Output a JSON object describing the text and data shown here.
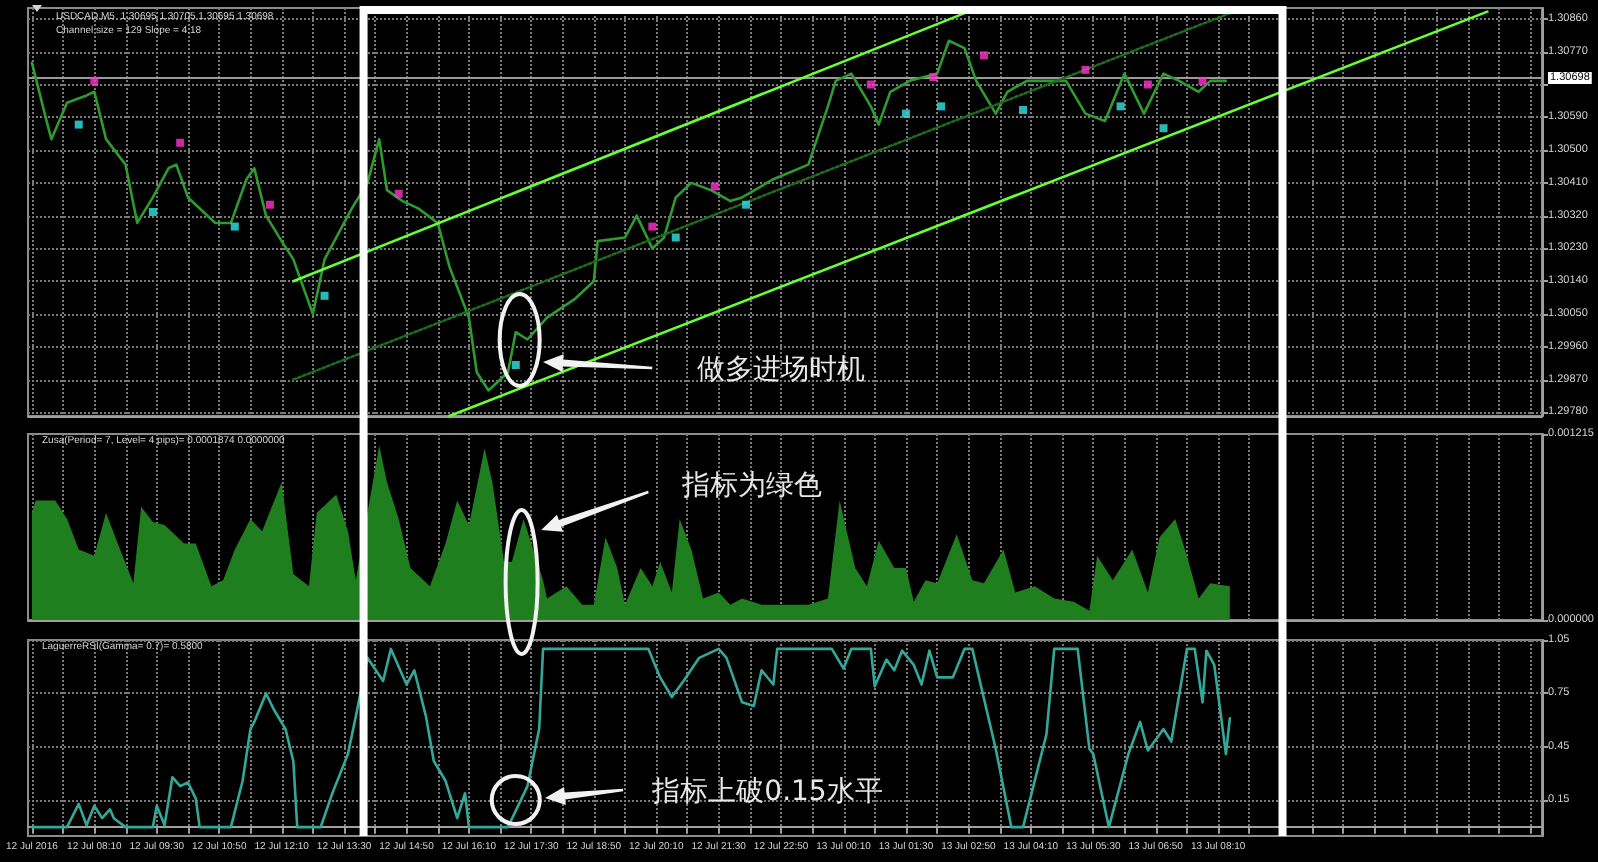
{
  "chart_data": [
    {
      "type": "line",
      "title": "USDCAD,M5  1.30695 1.30705 1.30695 1.30698",
      "subtitle": "Channel size = 129 Slope = 4.18",
      "xlim": [
        "2016-07-12T06:45",
        "2016-07-13T15:05"
      ],
      "xticks": [
        {
          "value": "2016-07-12T06:50",
          "label": null
        },
        {
          "value": "2016-07-12T07:30",
          "label": null
        },
        {
          "value": "2016-07-12T08:10",
          "label": null
        },
        {
          "value": "2016-07-12T08:50",
          "label": null
        },
        {
          "value": "2016-07-12T09:30",
          "label": null
        },
        {
          "value": "2016-07-12T10:10",
          "label": null
        },
        {
          "value": "2016-07-12T10:50",
          "label": null
        },
        {
          "value": "2016-07-12T11:30",
          "label": null
        },
        {
          "value": "2016-07-12T12:10",
          "label": null
        },
        {
          "value": "2016-07-12T12:50",
          "label": null
        },
        {
          "value": "2016-07-12T13:30",
          "label": null
        },
        {
          "value": "2016-07-12T14:10",
          "label": null
        },
        {
          "value": "2016-07-12T14:50",
          "label": null
        },
        {
          "value": "2016-07-12T15:30",
          "label": null
        },
        {
          "value": "2016-07-12T16:10",
          "label": null
        },
        {
          "value": "2016-07-12T16:50",
          "label": null
        },
        {
          "value": "2016-07-12T17:30",
          "label": null
        },
        {
          "value": "2016-07-12T18:10",
          "label": null
        },
        {
          "value": "2016-07-12T18:50",
          "label": null
        },
        {
          "value": "2016-07-12T19:30",
          "label": null
        },
        {
          "value": "2016-07-12T20:10",
          "label": null
        },
        {
          "value": "2016-07-12T20:50",
          "label": null
        },
        {
          "value": "2016-07-12T21:30",
          "label": null
        },
        {
          "value": "2016-07-12T22:10",
          "label": null
        },
        {
          "value": "2016-07-12T22:50",
          "label": null
        },
        {
          "value": "2016-07-12T23:30",
          "label": null
        },
        {
          "value": "2016-07-13T00:10",
          "label": null
        },
        {
          "value": "2016-07-13T00:50",
          "label": null
        },
        {
          "value": "2016-07-13T01:30",
          "label": null
        },
        {
          "value": "2016-07-13T02:10",
          "label": null
        },
        {
          "value": "2016-07-13T02:50",
          "label": null
        },
        {
          "value": "2016-07-13T03:30",
          "label": null
        },
        {
          "value": "2016-07-13T04:10",
          "label": null
        },
        {
          "value": "2016-07-13T04:50",
          "label": null
        },
        {
          "value": "2016-07-13T05:30",
          "label": null
        },
        {
          "value": "2016-07-13T06:10",
          "label": null
        },
        {
          "value": "2016-07-13T06:50",
          "label": null
        },
        {
          "value": "2016-07-13T07:30",
          "label": null
        },
        {
          "value": "2016-07-13T08:10",
          "label": null
        },
        {
          "value": "2016-07-13T08:50",
          "label": null
        },
        {
          "value": "2016-07-13T09:30",
          "label": null
        },
        {
          "value": "2016-07-13T10:10",
          "label": null
        },
        {
          "value": "2016-07-13T10:50",
          "label": null
        },
        {
          "value": "2016-07-13T11:30",
          "label": null
        },
        {
          "value": "2016-07-13T12:10",
          "label": null
        },
        {
          "value": "2016-07-13T12:50",
          "label": null
        },
        {
          "value": "2016-07-13T13:30",
          "label": null
        },
        {
          "value": "2016-07-13T14:10",
          "label": null
        },
        {
          "value": "2016-07-13T14:50",
          "label": null
        }
      ],
      "ylim": [
        1.2977,
        1.3089
      ],
      "yticks": [
        {
          "value": 1.2978,
          "label": "1.29780"
        },
        {
          "value": 1.2987,
          "label": "1.29870"
        },
        {
          "value": 1.2996,
          "label": "1.29960"
        },
        {
          "value": 1.3005,
          "label": "1.30050"
        },
        {
          "value": 1.3014,
          "label": "1.30140"
        },
        {
          "value": 1.3023,
          "label": "1.30230"
        },
        {
          "value": 1.3032,
          "label": "1.30320"
        },
        {
          "value": 1.3041,
          "label": "1.30410"
        },
        {
          "value": 1.305,
          "label": "1.30500"
        },
        {
          "value": 1.3059,
          "label": "1.30590"
        },
        {
          "value": 1.3068,
          "label": null
        },
        {
          "value": 1.3077,
          "label": "1.30770"
        },
        {
          "value": 1.3086,
          "label": "1.30860"
        }
      ],
      "tick_labels": "y",
      "grid": true,
      "series": [
        {
          "color": "#2f9a2f",
          "x": [
            "2016-07-12T06:50",
            "2016-07-12T07:10",
            "2016-07-12T07:15",
            "2016-07-12T07:35",
            "2016-07-12T08:00",
            "2016-07-12T08:10",
            "2016-07-12T08:25",
            "2016-07-12T08:50",
            "2016-07-12T09:05",
            "2016-07-12T09:25",
            "2016-07-12T09:45",
            "2016-07-12T09:55",
            "2016-07-12T10:10",
            "2016-07-12T10:45",
            "2016-07-12T11:05",
            "2016-07-12T11:25",
            "2016-07-12T11:35",
            "2016-07-12T11:50",
            "2016-07-12T12:10",
            "2016-07-12T12:25",
            "2016-07-12T12:50",
            "2016-07-12T13:05",
            "2016-07-12T13:30",
            "2016-07-12T13:40",
            "2016-07-12T14:00",
            "2016-07-12T14:15",
            "2016-07-12T14:25",
            "2016-07-12T14:45",
            "2016-07-12T15:05",
            "2016-07-12T15:30",
            "2016-07-12T15:45",
            "2016-07-12T16:10",
            "2016-07-12T16:20",
            "2016-07-12T16:35",
            "2016-07-12T17:00",
            "2016-07-12T17:10",
            "2016-07-12T17:25",
            "2016-07-12T17:50",
            "2016-07-12T18:25",
            "2016-07-12T18:50",
            "2016-07-12T18:55",
            "2016-07-12T19:30",
            "2016-07-12T19:45",
            "2016-07-12T20:05",
            "2016-07-12T20:20",
            "2016-07-12T20:35",
            "2016-07-12T20:55",
            "2016-07-12T21:20",
            "2016-07-12T21:45",
            "2016-07-12T22:00",
            "2016-07-12T22:40",
            "2016-07-12T23:25",
            "2016-07-12T23:50",
            "2016-07-13T00:00",
            "2016-07-13T00:20",
            "2016-07-13T00:45",
            "2016-07-13T00:55",
            "2016-07-13T01:10",
            "2016-07-13T01:35",
            "2016-07-13T02:10",
            "2016-07-13T02:25",
            "2016-07-13T02:45",
            "2016-07-13T03:00",
            "2016-07-13T03:25",
            "2016-07-13T03:40",
            "2016-07-13T04:05",
            "2016-07-13T04:30",
            "2016-07-13T04:55",
            "2016-07-13T05:20",
            "2016-07-13T05:45",
            "2016-07-13T06:10",
            "2016-07-13T06:35",
            "2016-07-13T07:00",
            "2016-07-13T07:20",
            "2016-07-13T07:45",
            "2016-07-13T08:00",
            "2016-07-13T08:20"
          ],
          "values": [
            1.3074,
            1.3057,
            1.3053,
            1.3063,
            1.3065,
            1.3066,
            1.3053,
            1.3046,
            1.303,
            1.3037,
            1.3045,
            1.3046,
            1.3037,
            1.303,
            1.303,
            1.3042,
            1.3045,
            1.3032,
            1.3025,
            1.302,
            1.3005,
            1.302,
            1.303,
            1.3034,
            1.3041,
            1.3053,
            1.3039,
            1.3036,
            1.3034,
            1.303,
            1.3018,
            1.3004,
            1.2989,
            1.2984,
            1.2989,
            1.3,
            1.2998,
            1.3004,
            1.3009,
            1.3014,
            1.3025,
            1.3026,
            1.3032,
            1.3023,
            1.3026,
            1.3037,
            1.3041,
            1.3039,
            1.3036,
            1.3037,
            1.3042,
            1.3046,
            1.3062,
            1.3069,
            1.3071,
            1.3062,
            1.3057,
            1.3066,
            1.3069,
            1.3071,
            1.308,
            1.3078,
            1.3069,
            1.306,
            1.3066,
            1.3069,
            1.3069,
            1.3069,
            1.306,
            1.3058,
            1.3071,
            1.306,
            1.3071,
            1.3069,
            1.3066,
            1.3069,
            1.3069
          ]
        },
        {
          "type": "line",
          "color": "#66ff33",
          "x": [
            "2016-07-12T12:25",
            "2016-07-13T02:50"
          ],
          "values": [
            1.3014,
            1.3088
          ]
        },
        {
          "type": "line",
          "color": "#1f6b1f",
          "line_style": "dotted",
          "x": [
            "2016-07-12T12:25",
            "2016-07-13T08:30"
          ],
          "values": [
            1.2987,
            1.3088
          ]
        },
        {
          "type": "line",
          "color": "#66ff33",
          "x": [
            "2016-07-12T15:45",
            "2016-07-13T13:55"
          ],
          "values": [
            1.2977,
            1.3088
          ]
        },
        {
          "type": "scatter",
          "marker": "square",
          "color": "#ff33cc",
          "x": [
            "2016-07-12T08:10",
            "2016-07-12T10:00",
            "2016-07-12T11:55",
            "2016-07-12T14:40",
            "2016-07-12T20:05",
            "2016-07-12T21:25",
            "2016-07-13T00:45",
            "2016-07-13T02:05",
            "2016-07-13T03:10",
            "2016-07-13T05:20",
            "2016-07-13T06:40",
            "2016-07-13T07:50"
          ],
          "values": [
            1.3069,
            1.3052,
            1.3035,
            1.3038,
            1.3029,
            1.304,
            1.3068,
            1.307,
            1.3076,
            1.3072,
            1.3068,
            1.3069
          ]
        },
        {
          "type": "scatter",
          "marker": "square",
          "color": "#33e6e6",
          "x": [
            "2016-07-12T07:50",
            "2016-07-12T09:25",
            "2016-07-12T11:10",
            "2016-07-12T13:05",
            "2016-07-12T17:10",
            "2016-07-12T20:35",
            "2016-07-12T22:05",
            "2016-07-13T01:30",
            "2016-07-13T02:15",
            "2016-07-13T04:00",
            "2016-07-13T06:05",
            "2016-07-13T07:00"
          ],
          "values": [
            1.3057,
            1.3033,
            1.3029,
            1.301,
            1.2991,
            1.3026,
            1.3035,
            1.306,
            1.3062,
            1.3061,
            1.3062,
            1.3056
          ]
        }
      ],
      "ref_lines": [
        {
          "axis": "y",
          "value": 1.30698,
          "label": "1.30698",
          "color": "#9a9a9a"
        }
      ],
      "annotations": [
        "做多进场时机"
      ]
    },
    {
      "type": "area",
      "title": "Zusa(Period= 7, Level= 4 pips)= 0.0001874 0.0000000",
      "color": "#1f7f1f",
      "xlim": [
        "2016-07-12T06:45",
        "2016-07-13T15:05"
      ],
      "xticks": [
        {
          "value": "2016-07-12T06:50",
          "label": null
        },
        {
          "value": "2016-07-12T07:30",
          "label": null
        },
        {
          "value": "2016-07-12T08:10",
          "label": null
        },
        {
          "value": "2016-07-12T08:50",
          "label": null
        },
        {
          "value": "2016-07-12T09:30",
          "label": null
        },
        {
          "value": "2016-07-12T10:10",
          "label": null
        },
        {
          "value": "2016-07-12T10:50",
          "label": null
        },
        {
          "value": "2016-07-12T11:30",
          "label": null
        },
        {
          "value": "2016-07-12T12:10",
          "label": null
        },
        {
          "value": "2016-07-12T12:50",
          "label": null
        },
        {
          "value": "2016-07-12T13:30",
          "label": null
        },
        {
          "value": "2016-07-12T14:10",
          "label": null
        },
        {
          "value": "2016-07-12T14:50",
          "label": null
        },
        {
          "value": "2016-07-12T15:30",
          "label": null
        },
        {
          "value": "2016-07-12T16:10",
          "label": null
        },
        {
          "value": "2016-07-12T16:50",
          "label": null
        },
        {
          "value": "2016-07-12T17:30",
          "label": null
        },
        {
          "value": "2016-07-12T18:10",
          "label": null
        },
        {
          "value": "2016-07-12T18:50",
          "label": null
        },
        {
          "value": "2016-07-12T19:30",
          "label": null
        },
        {
          "value": "2016-07-12T20:10",
          "label": null
        },
        {
          "value": "2016-07-12T20:50",
          "label": null
        },
        {
          "value": "2016-07-12T21:30",
          "label": null
        },
        {
          "value": "2016-07-12T22:10",
          "label": null
        },
        {
          "value": "2016-07-12T22:50",
          "label": null
        },
        {
          "value": "2016-07-12T23:30",
          "label": null
        },
        {
          "value": "2016-07-13T00:10",
          "label": null
        },
        {
          "value": "2016-07-13T00:50",
          "label": null
        },
        {
          "value": "2016-07-13T01:30",
          "label": null
        },
        {
          "value": "2016-07-13T02:10",
          "label": null
        },
        {
          "value": "2016-07-13T02:50",
          "label": null
        },
        {
          "value": "2016-07-13T03:30",
          "label": null
        },
        {
          "value": "2016-07-13T04:10",
          "label": null
        },
        {
          "value": "2016-07-13T04:50",
          "label": null
        },
        {
          "value": "2016-07-13T05:30",
          "label": null
        },
        {
          "value": "2016-07-13T06:10",
          "label": null
        },
        {
          "value": "2016-07-13T06:50",
          "label": null
        },
        {
          "value": "2016-07-13T07:30",
          "label": null
        },
        {
          "value": "2016-07-13T08:10",
          "label": null
        },
        {
          "value": "2016-07-13T08:50",
          "label": null
        },
        {
          "value": "2016-07-13T09:30",
          "label": null
        },
        {
          "value": "2016-07-13T10:10",
          "label": null
        },
        {
          "value": "2016-07-13T10:50",
          "label": null
        },
        {
          "value": "2016-07-13T11:30",
          "label": null
        },
        {
          "value": "2016-07-13T12:10",
          "label": null
        },
        {
          "value": "2016-07-13T12:50",
          "label": null
        },
        {
          "value": "2016-07-13T13:30",
          "label": null
        },
        {
          "value": "2016-07-13T14:10",
          "label": null
        },
        {
          "value": "2016-07-13T14:50",
          "label": null
        }
      ],
      "ylim": [
        0,
        0.001215
      ],
      "yticks": [
        {
          "value": 0,
          "label": "0.000000"
        },
        {
          "value": 0.001215,
          "label": "0.001215"
        }
      ],
      "tick_labels": "y",
      "grid": "x",
      "x": [
        "2016-07-12T06:50",
        "2016-07-12T06:55",
        "2016-07-12T07:20",
        "2016-07-12T07:35",
        "2016-07-12T07:50",
        "2016-07-12T08:10",
        "2016-07-12T08:25",
        "2016-07-12T08:40",
        "2016-07-12T09:00",
        "2016-07-12T09:10",
        "2016-07-12T09:25",
        "2016-07-12T09:40",
        "2016-07-12T10:05",
        "2016-07-12T10:20",
        "2016-07-12T10:40",
        "2016-07-12T10:55",
        "2016-07-12T11:10",
        "2016-07-12T11:30",
        "2016-07-12T11:45",
        "2016-07-12T12:10",
        "2016-07-12T12:25",
        "2016-07-12T12:45",
        "2016-07-12T12:55",
        "2016-07-12T13:20",
        "2016-07-12T13:35",
        "2016-07-12T13:45",
        "2016-07-12T14:15",
        "2016-07-12T14:25",
        "2016-07-12T14:40",
        "2016-07-12T14:55",
        "2016-07-12T15:20",
        "2016-07-12T15:40",
        "2016-07-12T15:55",
        "2016-07-12T16:10",
        "2016-07-12T16:30",
        "2016-07-12T16:40",
        "2016-07-12T16:55",
        "2016-07-12T17:05",
        "2016-07-12T17:20",
        "2016-07-12T17:30",
        "2016-07-12T17:45",
        "2016-07-12T17:50",
        "2016-07-12T18:15",
        "2016-07-12T18:35",
        "2016-07-12T18:50",
        "2016-07-12T19:05",
        "2016-07-12T19:20",
        "2016-07-12T19:30",
        "2016-07-12T19:50",
        "2016-07-12T20:05",
        "2016-07-12T20:15",
        "2016-07-12T20:30",
        "2016-07-12T20:40",
        "2016-07-12T20:55",
        "2016-07-12T21:10",
        "2016-07-12T21:30",
        "2016-07-12T21:45",
        "2016-07-12T22:00",
        "2016-07-12T22:25",
        "2016-07-12T22:50",
        "2016-07-12T23:25",
        "2016-07-12T23:50",
        "2016-07-13T00:05",
        "2016-07-13T00:25",
        "2016-07-13T00:40",
        "2016-07-13T00:55",
        "2016-07-13T01:15",
        "2016-07-13T01:30",
        "2016-07-13T01:40",
        "2016-07-13T01:55",
        "2016-07-13T02:10",
        "2016-07-13T02:35",
        "2016-07-13T02:55",
        "2016-07-13T03:10",
        "2016-07-13T03:35",
        "2016-07-13T03:50",
        "2016-07-13T04:15",
        "2016-07-13T04:40",
        "2016-07-13T05:05",
        "2016-07-13T05:25",
        "2016-07-13T05:35",
        "2016-07-13T05:55",
        "2016-07-13T06:20",
        "2016-07-13T06:40",
        "2016-07-13T06:55",
        "2016-07-13T07:15",
        "2016-07-13T07:30",
        "2016-07-13T07:45",
        "2016-07-13T08:00",
        "2016-07-13T08:25"
      ],
      "values": [
        0.0007,
        0.00078,
        0.00078,
        0.00066,
        0.00046,
        0.00042,
        0.0007,
        0.0005,
        0.00024,
        0.00074,
        0.00064,
        0.00062,
        0.0005,
        0.0005,
        0.00022,
        0.00026,
        0.00046,
        0.00066,
        0.00058,
        0.0009,
        0.0003,
        0.00022,
        0.0007,
        0.00082,
        0.00058,
        0.00026,
        0.00114,
        0.0009,
        0.00066,
        0.00034,
        0.00022,
        0.0005,
        0.00078,
        0.00062,
        0.00112,
        0.0009,
        0.00038,
        0.00038,
        0.00066,
        0.0005,
        0.00026,
        0.00014,
        0.00022,
        0.0001,
        0.0001,
        0.00054,
        0.00034,
        0.0001,
        0.00034,
        0.00022,
        0.00038,
        0.00018,
        0.00066,
        0.00046,
        0.00014,
        0.00018,
        0.0001,
        0.00014,
        0.0001,
        0.0001,
        0.0001,
        0.00014,
        0.00078,
        0.00034,
        0.00022,
        0.00052,
        0.00034,
        0.00034,
        0.00012,
        0.00026,
        0.00024,
        0.00056,
        0.00026,
        0.00024,
        0.00046,
        0.00018,
        0.00022,
        0.00014,
        0.00012,
        6e-05,
        0.00042,
        0.00026,
        0.00046,
        0.00018,
        0.00054,
        0.00066,
        0.00042,
        0.00014,
        0.00024,
        0.00022
      ],
      "annotations": [
        "指标为绿色"
      ]
    },
    {
      "type": "line",
      "title": "LaguerreRSI(Gamma= 0.7)= 0.5800",
      "color": "#33a89a",
      "xlim": [
        "2016-07-12T06:45",
        "2016-07-13T15:05"
      ],
      "xticks": [
        {
          "value": "2016-07-12T06:50",
          "label": "12 Jul 2016"
        },
        {
          "value": "2016-07-12T07:30",
          "label": null
        },
        {
          "value": "2016-07-12T08:10",
          "label": "12 Jul 08:10"
        },
        {
          "value": "2016-07-12T08:50",
          "label": null
        },
        {
          "value": "2016-07-12T09:30",
          "label": "12 Jul 09:30"
        },
        {
          "value": "2016-07-12T10:10",
          "label": null
        },
        {
          "value": "2016-07-12T10:50",
          "label": "12 Jul 10:50"
        },
        {
          "value": "2016-07-12T11:30",
          "label": null
        },
        {
          "value": "2016-07-12T12:10",
          "label": "12 Jul 12:10"
        },
        {
          "value": "2016-07-12T12:50",
          "label": null
        },
        {
          "value": "2016-07-12T13:30",
          "label": "12 Jul 13:30"
        },
        {
          "value": "2016-07-12T14:10",
          "label": null
        },
        {
          "value": "2016-07-12T14:50",
          "label": "12 Jul 14:50"
        },
        {
          "value": "2016-07-12T15:30",
          "label": null
        },
        {
          "value": "2016-07-12T16:10",
          "label": "12 Jul 16:10"
        },
        {
          "value": "2016-07-12T16:50",
          "label": null
        },
        {
          "value": "2016-07-12T17:30",
          "label": "12 Jul 17:30"
        },
        {
          "value": "2016-07-12T18:10",
          "label": null
        },
        {
          "value": "2016-07-12T18:50",
          "label": "12 Jul 18:50"
        },
        {
          "value": "2016-07-12T19:30",
          "label": null
        },
        {
          "value": "2016-07-12T20:10",
          "label": "12 Jul 20:10"
        },
        {
          "value": "2016-07-12T20:50",
          "label": null
        },
        {
          "value": "2016-07-12T21:30",
          "label": "12 Jul 21:30"
        },
        {
          "value": "2016-07-12T22:10",
          "label": null
        },
        {
          "value": "2016-07-12T22:50",
          "label": "12 Jul 22:50"
        },
        {
          "value": "2016-07-12T23:30",
          "label": null
        },
        {
          "value": "2016-07-13T00:10",
          "label": "13 Jul 00:10"
        },
        {
          "value": "2016-07-13T00:50",
          "label": null
        },
        {
          "value": "2016-07-13T01:30",
          "label": "13 Jul 01:30"
        },
        {
          "value": "2016-07-13T02:10",
          "label": null
        },
        {
          "value": "2016-07-13T02:50",
          "label": "13 Jul 02:50"
        },
        {
          "value": "2016-07-13T03:30",
          "label": null
        },
        {
          "value": "2016-07-13T04:10",
          "label": "13 Jul 04:10"
        },
        {
          "value": "2016-07-13T04:50",
          "label": null
        },
        {
          "value": "2016-07-13T05:30",
          "label": "13 Jul 05:30"
        },
        {
          "value": "2016-07-13T06:10",
          "label": null
        },
        {
          "value": "2016-07-13T06:50",
          "label": "13 Jul 06:50"
        },
        {
          "value": "2016-07-13T07:30",
          "label": null
        },
        {
          "value": "2016-07-13T08:10",
          "label": "13 Jul 08:10"
        },
        {
          "value": "2016-07-13T08:50",
          "label": null
        },
        {
          "value": "2016-07-13T09:30",
          "label": null
        },
        {
          "value": "2016-07-13T10:10",
          "label": null
        },
        {
          "value": "2016-07-13T10:50",
          "label": null
        },
        {
          "value": "2016-07-13T11:30",
          "label": null
        },
        {
          "value": "2016-07-13T12:10",
          "label": null
        },
        {
          "value": "2016-07-13T12:50",
          "label": null
        },
        {
          "value": "2016-07-13T13:30",
          "label": null
        },
        {
          "value": "2016-07-13T14:10",
          "label": null
        },
        {
          "value": "2016-07-13T14:50",
          "label": null
        }
      ],
      "ylim": [
        -0.05,
        1.05
      ],
      "yticks": [
        0.15,
        0.45,
        0.75,
        1.05
      ],
      "grid": true,
      "x": [
        "2016-07-12T06:50",
        "2016-07-12T07:35",
        "2016-07-12T07:50",
        "2016-07-12T08:00",
        "2016-07-12T08:10",
        "2016-07-12T08:20",
        "2016-07-12T08:30",
        "2016-07-12T08:35",
        "2016-07-12T08:50",
        "2016-07-12T09:25",
        "2016-07-12T09:30",
        "2016-07-12T09:40",
        "2016-07-12T09:50",
        "2016-07-12T10:00",
        "2016-07-12T10:10",
        "2016-07-12T10:20",
        "2016-07-12T10:25",
        "2016-07-12T11:05",
        "2016-07-12T11:20",
        "2016-07-12T11:30",
        "2016-07-12T11:35",
        "2016-07-12T11:50",
        "2016-07-12T12:00",
        "2016-07-12T12:15",
        "2016-07-12T12:25",
        "2016-07-12T12:30",
        "2016-07-12T13:00",
        "2016-07-12T13:15",
        "2016-07-12T13:35",
        "2016-07-12T13:45",
        "2016-07-12T14:00",
        "2016-07-12T14:20",
        "2016-07-12T14:30",
        "2016-07-12T14:50",
        "2016-07-12T15:00",
        "2016-07-12T15:15",
        "2016-07-12T15:25",
        "2016-07-12T15:40",
        "2016-07-12T15:55",
        "2016-07-12T16:05",
        "2016-07-12T16:10",
        "2016-07-12T17:00",
        "2016-07-12T17:25",
        "2016-07-12T17:40",
        "2016-07-12T17:45",
        "2016-07-12T20:00",
        "2016-07-12T20:15",
        "2016-07-12T20:30",
        "2016-07-12T20:45",
        "2016-07-12T21:05",
        "2016-07-12T21:30",
        "2016-07-12T21:40",
        "2016-07-12T22:00",
        "2016-07-12T22:15",
        "2016-07-12T22:25",
        "2016-07-12T22:40",
        "2016-07-12T22:45",
        "2016-07-12T23:55",
        "2016-07-13T00:10",
        "2016-07-13T00:20",
        "2016-07-13T00:45",
        "2016-07-13T00:50",
        "2016-07-13T01:05",
        "2016-07-13T01:15",
        "2016-07-13T01:25",
        "2016-07-13T01:40",
        "2016-07-13T01:50",
        "2016-07-13T02:00",
        "2016-07-13T02:10",
        "2016-07-13T02:30",
        "2016-07-13T02:45",
        "2016-07-13T02:55",
        "2016-07-13T03:25",
        "2016-07-13T03:45",
        "2016-07-13T04:00",
        "2016-07-13T04:30",
        "2016-07-13T04:40",
        "2016-07-13T05:10",
        "2016-07-13T05:25",
        "2016-07-13T05:30",
        "2016-07-13T05:50",
        "2016-07-13T06:15",
        "2016-07-13T06:30",
        "2016-07-13T06:40",
        "2016-07-13T07:00",
        "2016-07-13T07:10",
        "2016-07-13T07:30",
        "2016-07-13T07:40",
        "2016-07-13T07:50",
        "2016-07-13T07:55",
        "2016-07-13T08:05",
        "2016-07-13T08:20",
        "2016-07-13T08:25"
      ],
      "values": [
        0,
        0,
        0.13,
        0.01,
        0.12,
        0.05,
        0.1,
        0.05,
        0,
        0,
        0.12,
        0.01,
        0.28,
        0.23,
        0.25,
        0.16,
        0,
        0,
        0.26,
        0.55,
        0.59,
        0.75,
        0.66,
        0.55,
        0.37,
        0,
        0,
        0.19,
        0.41,
        0.62,
        0.95,
        0.82,
        1,
        0.8,
        0.88,
        0.62,
        0.37,
        0.26,
        0.05,
        0.19,
        0,
        0,
        0.23,
        0.55,
        1,
        1,
        0.84,
        0.73,
        0.82,
        0.95,
        1,
        0.95,
        0.7,
        0.68,
        0.88,
        0.8,
        1,
        1,
        0.89,
        1,
        1,
        0.79,
        0.94,
        0.88,
        0.99,
        0.91,
        0.8,
        0.99,
        0.84,
        0.84,
        1,
        1,
        0.44,
        0,
        0,
        0.52,
        1,
        1,
        0.44,
        0.41,
        0,
        0.41,
        0.59,
        0.43,
        0.55,
        0.48,
        1,
        1,
        0.7,
        0.99,
        0.91,
        0.41,
        0.61
      ],
      "annotations": [
        "指标上破0.15水平"
      ]
    }
  ]
}
